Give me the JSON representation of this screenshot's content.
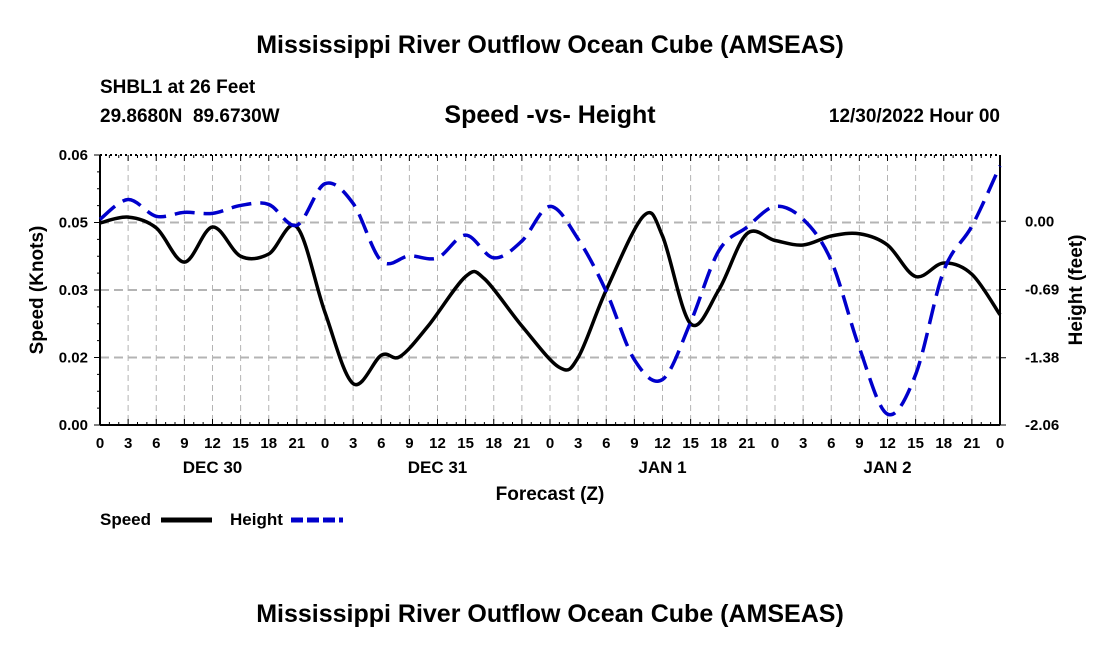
{
  "page": {
    "main_title": "Mississippi River Outflow Ocean Cube (AMSEAS)",
    "station": "SHBL1 at 26 Feet",
    "coordinates": "29.8680N  89.6730W",
    "subtitle": "Speed -vs- Height",
    "datetime": "12/30/2022 Hour 00",
    "footer_title": "Mississippi River Outflow Ocean Cube (AMSEAS)"
  },
  "colors": {
    "speed": "#000000",
    "height": "#0000cc",
    "grid": "#b4b4b4"
  },
  "chart_data": {
    "type": "line",
    "title": "Speed -vs- Height",
    "xlabel": "Forecast (Z)",
    "ylabel": "Speed (Knots)",
    "y2label": "Height (feet)",
    "x_range": [
      0,
      96
    ],
    "ylim": [
      0,
      0.06
    ],
    "y2lim": [
      -2.06,
      0.67
    ],
    "grid": true,
    "legend_position": "bottom-left",
    "y_ticks": [
      {
        "value": 0.0,
        "label": "0.00"
      },
      {
        "value": 0.015,
        "label": "0.02"
      },
      {
        "value": 0.03,
        "label": "0.03"
      },
      {
        "value": 0.045,
        "label": "0.05"
      },
      {
        "value": 0.06,
        "label": "0.06"
      }
    ],
    "y2_ticks": [
      {
        "value": 0.0,
        "label": "0.00"
      },
      {
        "value": -0.69,
        "label": "-0.69"
      },
      {
        "value": -1.38,
        "label": "-1.38"
      },
      {
        "value": -2.06,
        "label": "-2.06"
      }
    ],
    "x_ticks": [
      {
        "value": 0,
        "label": "0"
      },
      {
        "value": 3,
        "label": "3"
      },
      {
        "value": 6,
        "label": "6"
      },
      {
        "value": 9,
        "label": "9"
      },
      {
        "value": 12,
        "label": "12"
      },
      {
        "value": 15,
        "label": "15"
      },
      {
        "value": 18,
        "label": "18"
      },
      {
        "value": 21,
        "label": "21"
      },
      {
        "value": 24,
        "label": "0"
      },
      {
        "value": 27,
        "label": "3"
      },
      {
        "value": 30,
        "label": "6"
      },
      {
        "value": 33,
        "label": "9"
      },
      {
        "value": 36,
        "label": "12"
      },
      {
        "value": 39,
        "label": "15"
      },
      {
        "value": 42,
        "label": "18"
      },
      {
        "value": 45,
        "label": "21"
      },
      {
        "value": 48,
        "label": "0"
      },
      {
        "value": 51,
        "label": "3"
      },
      {
        "value": 54,
        "label": "6"
      },
      {
        "value": 57,
        "label": "9"
      },
      {
        "value": 60,
        "label": "12"
      },
      {
        "value": 63,
        "label": "15"
      },
      {
        "value": 66,
        "label": "18"
      },
      {
        "value": 69,
        "label": "21"
      },
      {
        "value": 72,
        "label": "0"
      },
      {
        "value": 75,
        "label": "3"
      },
      {
        "value": 78,
        "label": "6"
      },
      {
        "value": 81,
        "label": "9"
      },
      {
        "value": 84,
        "label": "12"
      },
      {
        "value": 87,
        "label": "15"
      },
      {
        "value": 90,
        "label": "18"
      },
      {
        "value": 93,
        "label": "21"
      },
      {
        "value": 96,
        "label": "0"
      }
    ],
    "day_labels": [
      {
        "value": 12,
        "label": "DEC 30"
      },
      {
        "value": 36,
        "label": "DEC 31"
      },
      {
        "value": 60,
        "label": "JAN 1"
      },
      {
        "value": 84,
        "label": "JAN 2"
      }
    ],
    "series": [
      {
        "name": "Speed",
        "axis": "left",
        "style": "solid",
        "x": [
          0,
          3,
          6,
          9,
          12,
          15,
          18,
          21,
          24,
          27,
          30,
          32,
          35,
          39,
          41,
          45,
          49,
          51,
          54,
          58,
          60,
          63,
          66,
          69,
          72,
          75,
          78,
          81,
          84,
          87,
          90,
          93,
          96
        ],
        "values": [
          0.0449,
          0.0462,
          0.0438,
          0.0362,
          0.044,
          0.0375,
          0.038,
          0.044,
          0.025,
          0.0092,
          0.0155,
          0.0152,
          0.022,
          0.033,
          0.0325,
          0.022,
          0.0128,
          0.015,
          0.03,
          0.0465,
          0.042,
          0.0225,
          0.03,
          0.0425,
          0.041,
          0.04,
          0.042,
          0.0425,
          0.04,
          0.033,
          0.036,
          0.0335,
          0.0245
        ]
      },
      {
        "name": "Height",
        "axis": "right",
        "style": "dashed",
        "x": [
          0,
          3,
          6,
          9,
          12,
          15,
          18,
          21,
          24,
          27,
          30,
          33,
          36,
          39,
          42,
          45,
          48,
          51,
          54,
          57,
          60,
          63,
          66,
          69,
          72,
          75,
          78,
          81,
          84,
          87,
          90,
          93,
          96
        ],
        "values": [
          0.02,
          0.22,
          0.05,
          0.09,
          0.08,
          0.16,
          0.17,
          -0.04,
          0.38,
          0.18,
          -0.4,
          -0.35,
          -0.37,
          -0.14,
          -0.37,
          -0.2,
          0.15,
          -0.18,
          -0.71,
          -1.4,
          -1.6,
          -1.02,
          -0.3,
          -0.06,
          0.15,
          0.02,
          -0.4,
          -1.28,
          -1.95,
          -1.55,
          -0.5,
          -0.05,
          0.56
        ]
      }
    ]
  }
}
